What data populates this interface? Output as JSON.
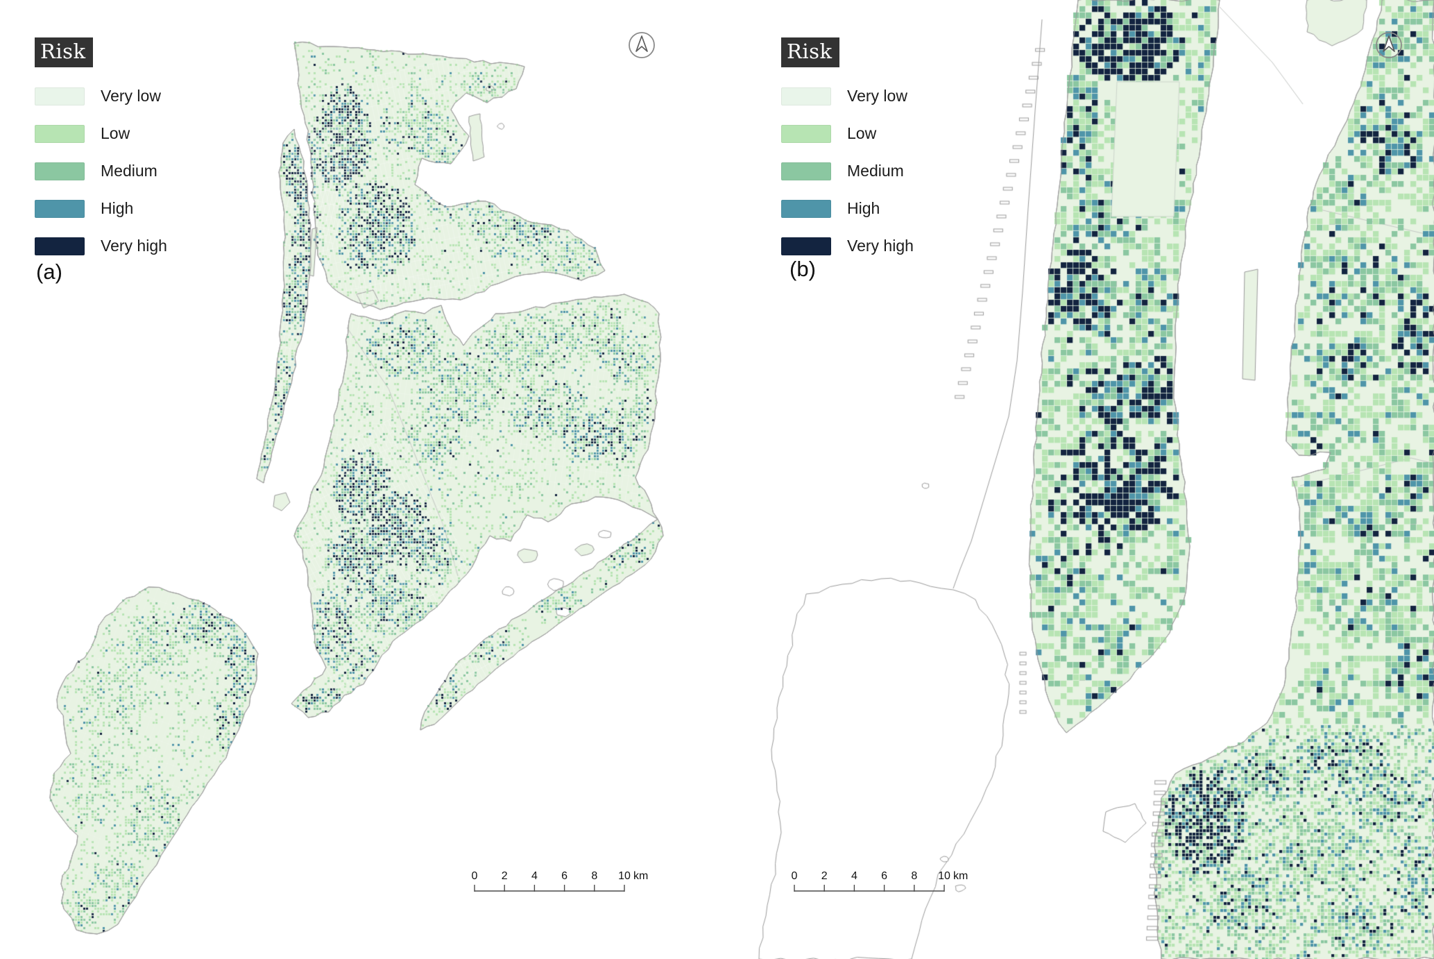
{
  "figure": {
    "panels": [
      {
        "id": "a",
        "label": "(a)"
      },
      {
        "id": "b",
        "label": "(b)"
      }
    ],
    "legend": {
      "title": "Risk",
      "items": [
        {
          "label": "Very low",
          "color": "#e9f5ea"
        },
        {
          "label": "Low",
          "color": "#b7e4b3"
        },
        {
          "label": "Medium",
          "color": "#8bc7a1"
        },
        {
          "label": "High",
          "color": "#4f95a9"
        },
        {
          "label": "Very high",
          "color": "#132440"
        }
      ]
    },
    "scale_bar": {
      "tick_labels": [
        "0",
        "2",
        "4",
        "6",
        "8",
        "10"
      ],
      "unit": "km"
    },
    "north_arrow_icon": "compass-north-arrow"
  },
  "map_style": {
    "water_color": "#ffffff",
    "land_color": "#e8f3e3",
    "coastline_color": "#9b9b9b",
    "boundary_color": "#c3c7c4",
    "risk_title_bg": "#333333",
    "risk_title_color": "#ffffff",
    "text_color": "#1a1a1a"
  }
}
